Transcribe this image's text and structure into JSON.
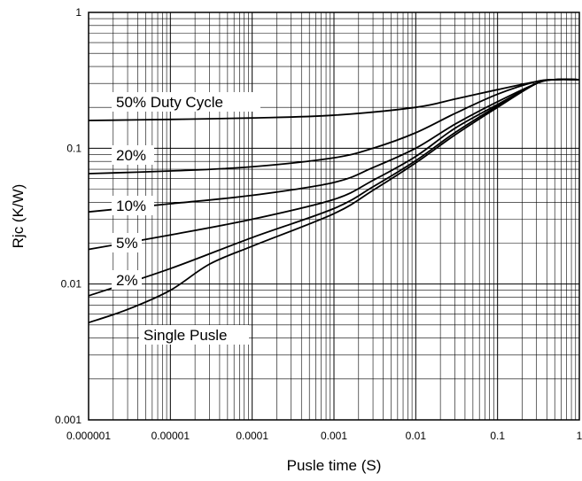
{
  "chart_data": {
    "type": "line",
    "xlabel": "Pusle time (S)",
    "ylabel": "Rjc (K/W)",
    "xscale": "log",
    "yscale": "log",
    "xlim": [
      1e-06,
      1
    ],
    "ylim": [
      0.001,
      1
    ],
    "grid": true,
    "x_ticks": [
      "0.000001",
      "0.00001",
      "0.0001",
      "0.001",
      "0.01",
      "0.1",
      "1"
    ],
    "y_ticks": [
      "0.001",
      "0.01",
      "0.1",
      "1"
    ],
    "series": [
      {
        "name": "50% Duty Cycle",
        "x": [
          1e-06,
          1e-05,
          0.0001,
          0.001,
          0.01,
          0.03,
          0.1,
          0.3,
          0.5,
          1
        ],
        "y": [
          0.16,
          0.163,
          0.167,
          0.175,
          0.2,
          0.23,
          0.27,
          0.31,
          0.32,
          0.32
        ]
      },
      {
        "name": "20%",
        "x": [
          1e-06,
          1e-05,
          0.0001,
          0.001,
          0.003,
          0.01,
          0.03,
          0.1,
          0.3,
          0.5,
          1
        ],
        "y": [
          0.065,
          0.068,
          0.073,
          0.085,
          0.1,
          0.13,
          0.18,
          0.25,
          0.31,
          0.32,
          0.32
        ]
      },
      {
        "name": "10%",
        "x": [
          1e-06,
          1e-05,
          0.0001,
          0.001,
          0.003,
          0.01,
          0.03,
          0.1,
          0.3,
          0.5,
          1
        ],
        "y": [
          0.034,
          0.039,
          0.045,
          0.056,
          0.072,
          0.1,
          0.15,
          0.22,
          0.3,
          0.32,
          0.32
        ]
      },
      {
        "name": "5%",
        "x": [
          1e-06,
          1e-05,
          0.0001,
          0.001,
          0.003,
          0.01,
          0.03,
          0.1,
          0.3,
          0.5,
          1
        ],
        "y": [
          0.018,
          0.023,
          0.03,
          0.042,
          0.058,
          0.087,
          0.14,
          0.21,
          0.3,
          0.32,
          0.32
        ]
      },
      {
        "name": "2%",
        "x": [
          1e-06,
          1e-05,
          0.0001,
          0.001,
          0.003,
          0.01,
          0.03,
          0.1,
          0.3,
          0.5,
          1
        ],
        "y": [
          0.0082,
          0.013,
          0.022,
          0.036,
          0.052,
          0.081,
          0.13,
          0.205,
          0.3,
          0.32,
          0.32
        ]
      },
      {
        "name": "Single Pusle",
        "x": [
          1e-06,
          3e-06,
          1e-05,
          3e-05,
          0.0001,
          0.001,
          0.003,
          0.01,
          0.03,
          0.1,
          0.3,
          0.5,
          1
        ],
        "y": [
          0.0052,
          0.0065,
          0.009,
          0.014,
          0.019,
          0.033,
          0.049,
          0.078,
          0.125,
          0.2,
          0.3,
          0.32,
          0.32
        ]
      }
    ]
  }
}
